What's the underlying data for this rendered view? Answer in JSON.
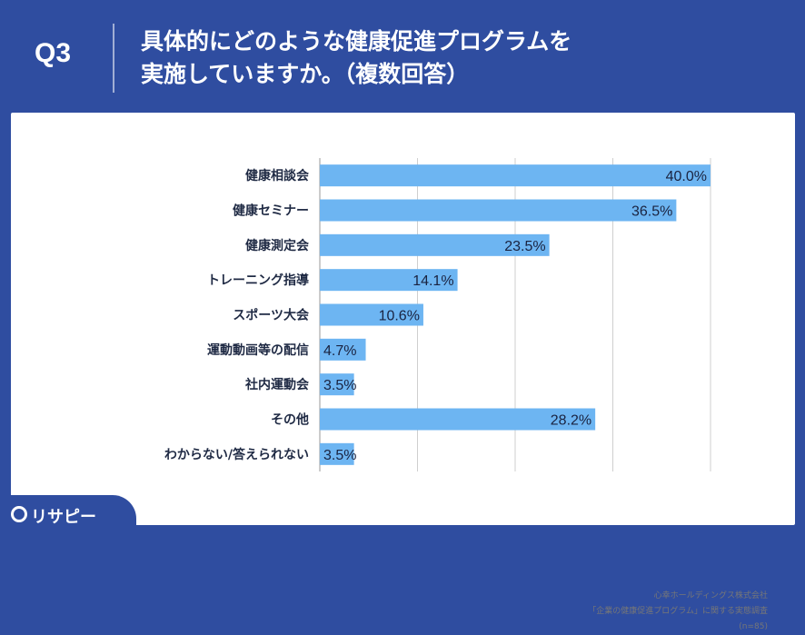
{
  "header": {
    "question_number": "Q3",
    "question_line1": "具体的にどのような健康促進プログラムを",
    "question_line2": "実施していますか。（複数回答）"
  },
  "source": {
    "line1": "心幸ホールディングス株式会社",
    "line2": "「企業の健康促進プログラム」に関する実態調査",
    "line3": "(n=85)"
  },
  "logo": {
    "text": "リサピー",
    "icon": "search-pin-icon"
  },
  "colors": {
    "bar": "#6db5f2",
    "header": "#2f4da0",
    "text": "#1f2a44",
    "grid": "#cfcfcf"
  },
  "chart_data": {
    "type": "bar",
    "orientation": "horizontal",
    "categories": [
      "健康相談会",
      "健康セミナー",
      "健康測定会",
      "トレーニング指導",
      "スポーツ大会",
      "運動動画等の配信",
      "社内運動会",
      "その他",
      "わからない/答えられない"
    ],
    "values": [
      40.0,
      36.5,
      23.5,
      14.1,
      10.6,
      4.7,
      3.5,
      28.2,
      3.5
    ],
    "data_labels": [
      "40.0%",
      "36.5%",
      "23.5%",
      "14.1%",
      "10.6%",
      "4.7%",
      "3.5%",
      "28.2%",
      "3.5%"
    ],
    "xlim": [
      0,
      40
    ],
    "grid": true
  }
}
